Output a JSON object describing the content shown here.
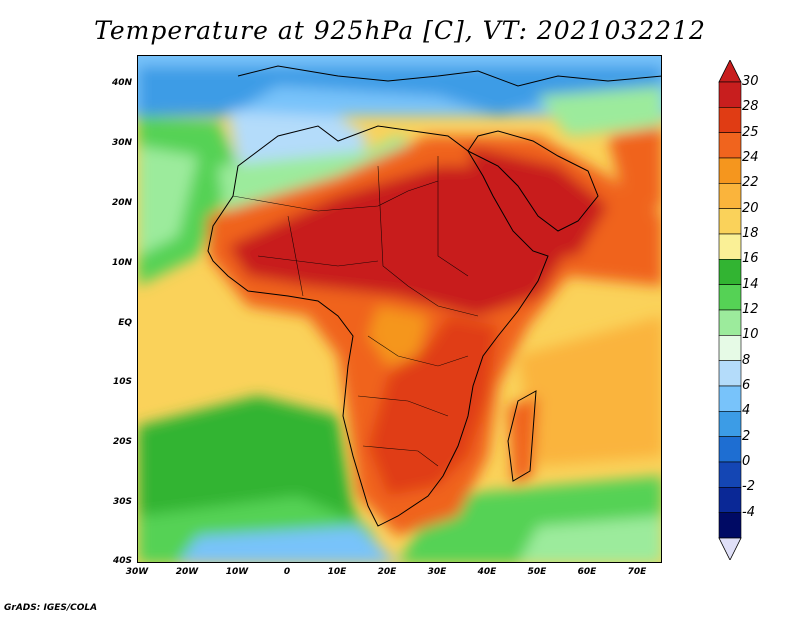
{
  "title": "Temperature at 925hPa [C], VT: 2021032212",
  "credit": "GrADS: IGES/COLA",
  "lat_labels": [
    "40N",
    "30N",
    "20N",
    "10N",
    "EQ",
    "10S",
    "20S",
    "30S",
    "40S"
  ],
  "lon_labels": [
    "30W",
    "20W",
    "10W",
    "0",
    "10E",
    "20E",
    "30E",
    "40E",
    "50E",
    "60E",
    "70E"
  ],
  "colorbar": {
    "labels": [
      "30",
      "28",
      "25",
      "24",
      "22",
      "20",
      "18",
      "16",
      "14",
      "12",
      "10",
      "8",
      "6",
      "4",
      "2",
      "0",
      "-2",
      "-4"
    ],
    "colors": [
      "#c81e1e",
      "#e03c14",
      "#f0641e",
      "#f5961e",
      "#fab43c",
      "#fad25a",
      "#faf096",
      "#32b432",
      "#55d255",
      "#9ceb9c",
      "#e6fae6",
      "#b4dcfa",
      "#78c3fa",
      "#3c9ce6",
      "#1e6ed2",
      "#1446b4",
      "#0a2896",
      "#000a64"
    ]
  }
}
